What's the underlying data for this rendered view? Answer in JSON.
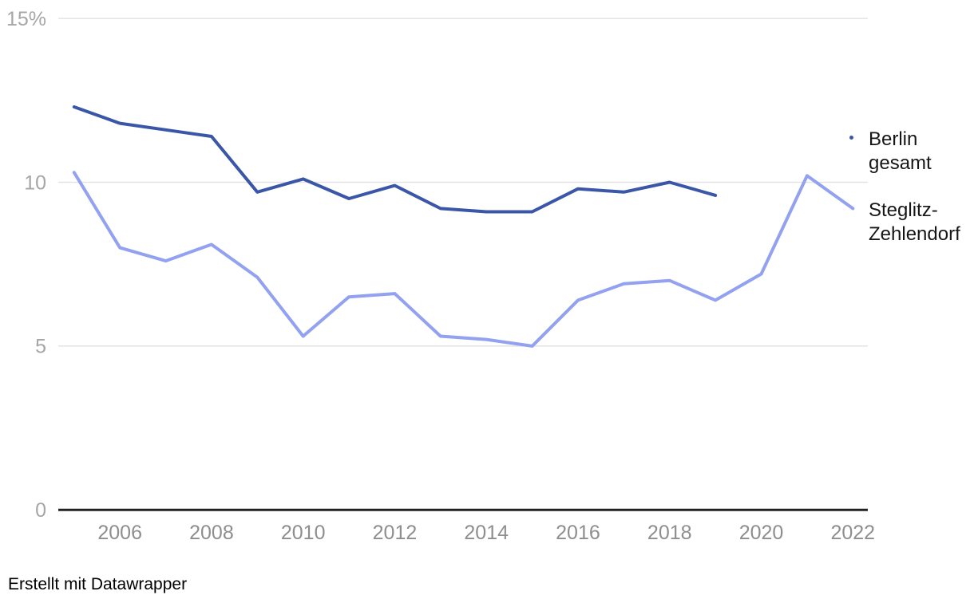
{
  "chart_data": {
    "type": "line",
    "title": "",
    "xlabel": "",
    "ylabel": "",
    "unit": "%",
    "x_domain": [
      2005,
      2022
    ],
    "ylim": [
      0,
      15
    ],
    "grid": "horizontal-only",
    "legend_position": "right-of-plot",
    "x_ticks": [
      2006,
      2008,
      2010,
      2012,
      2014,
      2016,
      2018,
      2020,
      2022
    ],
    "y_ticks": [
      {
        "value": 15,
        "label": "15%"
      },
      {
        "value": 10,
        "label": "10"
      },
      {
        "value": 5,
        "label": "5"
      },
      {
        "value": 0,
        "label": "0"
      }
    ],
    "series": [
      {
        "name": "Berlin gesamt",
        "color": "#3a56a8",
        "years": [
          2005,
          2006,
          2007,
          2008,
          2009,
          2010,
          2011,
          2012,
          2013,
          2014,
          2015,
          2016,
          2017,
          2018,
          2019
        ],
        "values": [
          12.3,
          11.8,
          11.6,
          11.4,
          9.7,
          10.1,
          9.5,
          9.9,
          9.2,
          9.1,
          9.1,
          9.8,
          9.7,
          10.0,
          9.6
        ]
      },
      {
        "name": "Steglitz-Zehlendorf",
        "color": "#92a1f0",
        "years": [
          2005,
          2006,
          2007,
          2008,
          2009,
          2010,
          2011,
          2012,
          2013,
          2014,
          2015,
          2016,
          2017,
          2018,
          2019,
          2020,
          2021,
          2022
        ],
        "values": [
          10.3,
          8.0,
          7.6,
          8.1,
          7.1,
          5.3,
          6.5,
          6.6,
          5.3,
          5.2,
          5.0,
          6.4,
          6.9,
          7.0,
          6.4,
          7.2,
          10.2,
          9.2
        ]
      }
    ],
    "colors": {
      "grid_line": "#e3e3e3",
      "axis_line": "#222222",
      "y_tick_label": "#a6a6a6",
      "x_tick_label": "#8e8e8e",
      "legend_text": "#161616"
    },
    "attribution": "Erstellt mit Datawrapper"
  }
}
